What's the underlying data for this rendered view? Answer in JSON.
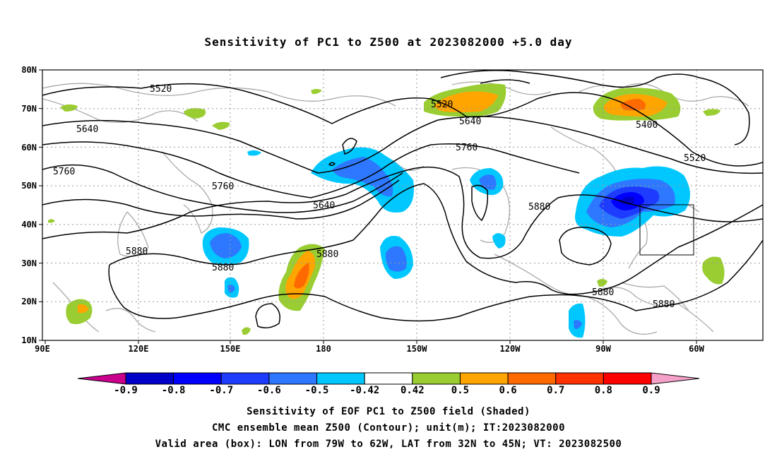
{
  "title": "Sensitivity of PC1 to Z500 at 2023082000 +5.0 day",
  "map": {
    "lat_ticks": [
      "80N",
      "70N",
      "60N",
      "50N",
      "40N",
      "30N",
      "20N",
      "10N"
    ],
    "lon_ticks": [
      "90E",
      "120E",
      "150E",
      "180",
      "150W",
      "120W",
      "90W",
      "60W"
    ],
    "contour_labels": [
      "5520",
      "5640",
      "5760",
      "5520",
      "5640",
      "5760",
      "5400",
      "5520",
      "5640",
      "5760",
      "5880",
      "5880",
      "5880",
      "5880",
      "5880",
      "5880"
    ],
    "valid_box": {
      "lon_west": "79W",
      "lon_east": "62W",
      "lat_south": "32N",
      "lat_north": "45N"
    }
  },
  "colorbar": {
    "labels": [
      "-0.9",
      "-0.8",
      "-0.7",
      "-0.6",
      "-0.5",
      "-0.42",
      "0.42",
      "0.5",
      "0.6",
      "0.7",
      "0.8",
      "0.9"
    ],
    "colors": [
      "#0000c8",
      "#0000ff",
      "#1e3cff",
      "#2d78ff",
      "#00c8ff",
      "#ffffff",
      "#9acd32",
      "#ffa500",
      "#ff6a00",
      "#ff3200",
      "#ff0000"
    ],
    "left_end_color": "#c8008c",
    "right_end_color": "#f5a0c8"
  },
  "captions": [
    "Sensitivity of EOF PC1 to Z500 field (Shaded)",
    "CMC ensemble mean Z500 (Contour); unit(m); IT:2023082000",
    "Valid area (box): LON from 79W to 62W, LAT from 32N to 45N; VT: 2023082500"
  ]
}
